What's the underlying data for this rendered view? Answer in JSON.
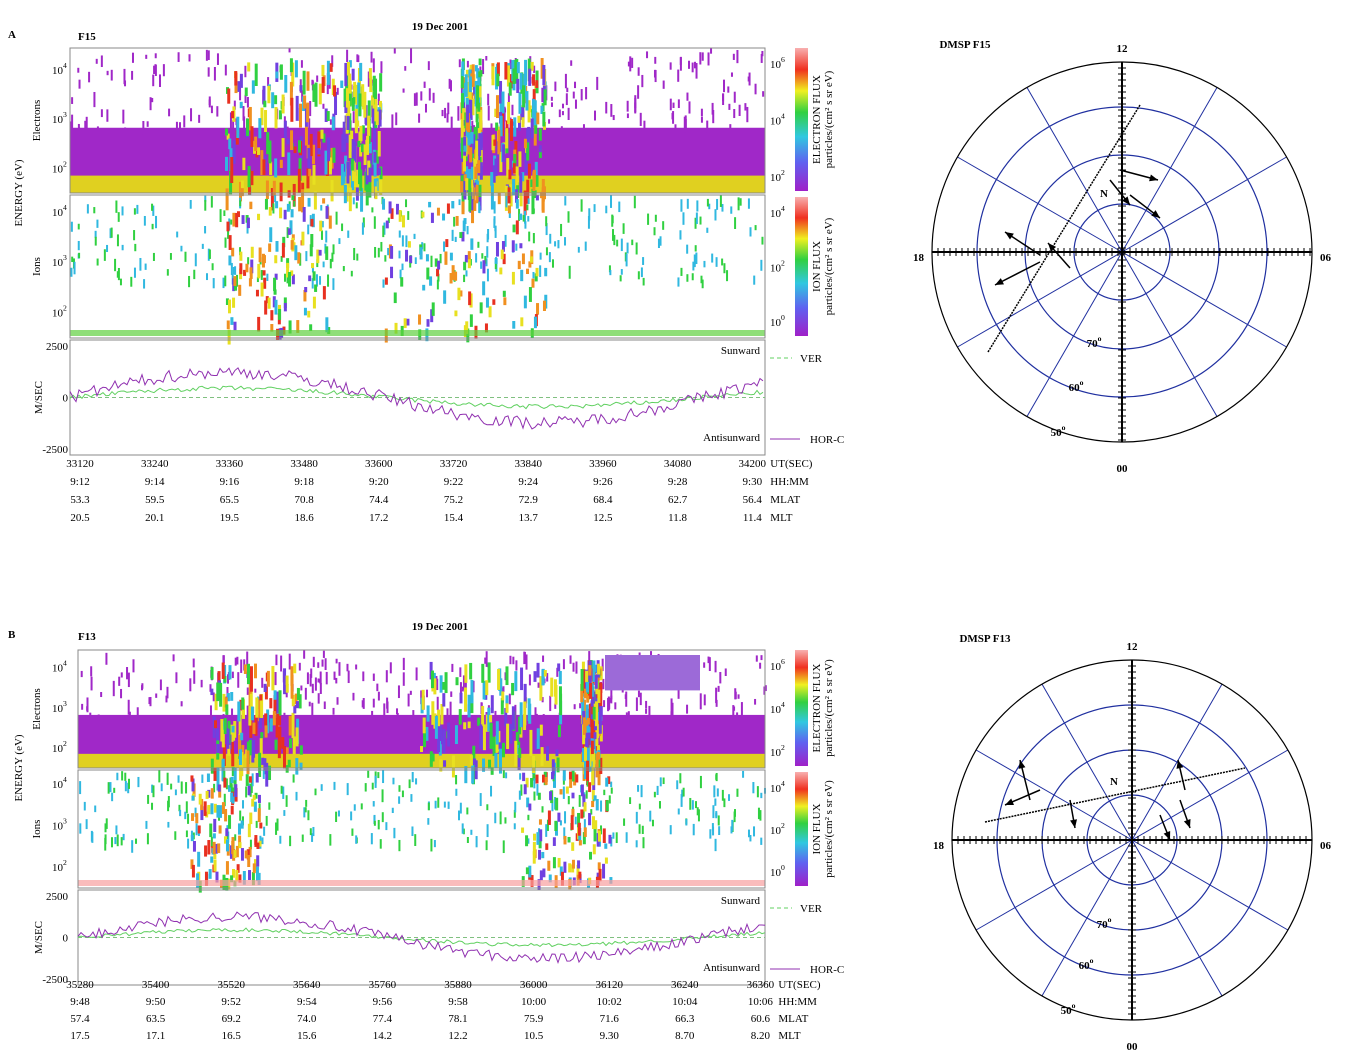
{
  "panels": [
    {
      "letter": "A",
      "satellite": "F15",
      "date": "19 Dec 2001",
      "spectrogram": {
        "energy_label": "ENERGY (eV)",
        "electrons_label": "Electrons",
        "ions_label": "Ions",
        "electron_ticks": [
          {
            "base": "10",
            "exp": "2"
          },
          {
            "base": "10",
            "exp": "3"
          },
          {
            "base": "10",
            "exp": "4"
          }
        ],
        "ion_ticks": [
          {
            "base": "10",
            "exp": "2"
          },
          {
            "base": "10",
            "exp": "3"
          },
          {
            "base": "10",
            "exp": "4"
          }
        ],
        "electron_colorbar": {
          "label": "ELECTRON FLUX",
          "units": "particles/(cm² s sr eV)",
          "ticks": [
            {
              "base": "10",
              "exp": "2"
            },
            {
              "base": "10",
              "exp": "4"
            },
            {
              "base": "10",
              "exp": "6"
            }
          ]
        },
        "ion_colorbar": {
          "label": "ION FLUX",
          "units": "particles/(cm² s sr eV)",
          "ticks": [
            {
              "base": "10",
              "exp": "0"
            },
            {
              "base": "10",
              "exp": "2"
            },
            {
              "base": "10",
              "exp": "4"
            }
          ]
        }
      },
      "velocity": {
        "label": "M/SEC",
        "ticks": [
          "2500",
          "0",
          "-2500"
        ],
        "sunward": "Sunward",
        "antisunward": "Antisunward",
        "legend": [
          "VER",
          "HOR-C"
        ]
      },
      "time_axis": [
        {
          "label": "UT(SEC)",
          "values": [
            "33120",
            "33240",
            "33360",
            "33480",
            "33600",
            "33720",
            "33840",
            "33960",
            "34080",
            "34200"
          ]
        },
        {
          "label": "HH:MM",
          "values": [
            "9:12",
            "9:14",
            "9:16",
            "9:18",
            "9:20",
            "9:22",
            "9:24",
            "9:26",
            "9:28",
            "9:30"
          ]
        },
        {
          "label": "MLAT",
          "values": [
            "53.3",
            "59.5",
            "65.5",
            "70.8",
            "74.4",
            "75.2",
            "72.9",
            "68.4",
            "62.7",
            "56.4"
          ]
        },
        {
          "label": "MLT",
          "values": [
            "20.5",
            "20.1",
            "19.5",
            "18.6",
            "17.2",
            "15.4",
            "13.7",
            "12.5",
            "11.8",
            "11.4"
          ]
        }
      ],
      "polar": {
        "title": "DMSP F15",
        "noon": "12",
        "dusk": "18",
        "dawn": "06",
        "midnight": "00",
        "north": "N",
        "latitudes": [
          {
            "base": "70",
            "exp": "o"
          },
          {
            "base": "60",
            "exp": "o"
          },
          {
            "base": "50",
            "exp": "o"
          }
        ]
      }
    },
    {
      "letter": "B",
      "satellite": "F13",
      "date": "19 Dec 2001",
      "spectrogram": {
        "energy_label": "ENERGY (eV)",
        "electrons_label": "Electrons",
        "ions_label": "Ions",
        "electron_ticks": [
          {
            "base": "10",
            "exp": "2"
          },
          {
            "base": "10",
            "exp": "3"
          },
          {
            "base": "10",
            "exp": "4"
          }
        ],
        "ion_ticks": [
          {
            "base": "10",
            "exp": "2"
          },
          {
            "base": "10",
            "exp": "3"
          },
          {
            "base": "10",
            "exp": "4"
          }
        ],
        "electron_colorbar": {
          "label": "ELECTRON FLUX",
          "units": "particles/(cm² s sr eV)",
          "ticks": [
            {
              "base": "10",
              "exp": "2"
            },
            {
              "base": "10",
              "exp": "4"
            },
            {
              "base": "10",
              "exp": "6"
            }
          ]
        },
        "ion_colorbar": {
          "label": "ION FLUX",
          "units": "particles/(cm² s sr eV)",
          "ticks": [
            {
              "base": "10",
              "exp": "0"
            },
            {
              "base": "10",
              "exp": "2"
            },
            {
              "base": "10",
              "exp": "4"
            }
          ]
        }
      },
      "velocity": {
        "label": "M/SEC",
        "ticks": [
          "2500",
          "0",
          "-2500"
        ],
        "sunward": "Sunward",
        "antisunward": "Antisunward",
        "legend": [
          "VER",
          "HOR-C"
        ]
      },
      "time_axis": [
        {
          "label": "UT(SEC)",
          "values": [
            "35280",
            "35400",
            "35520",
            "35640",
            "35760",
            "35880",
            "36000",
            "36120",
            "36240",
            "36360"
          ]
        },
        {
          "label": "HH:MM",
          "values": [
            "9:48",
            "9:50",
            "9:52",
            "9:54",
            "9:56",
            "9:58",
            "10:00",
            "10:02",
            "10:04",
            "10:06"
          ]
        },
        {
          "label": "MLAT",
          "values": [
            "57.4",
            "63.5",
            "69.2",
            "74.0",
            "77.4",
            "78.1",
            "75.9",
            "71.6",
            "66.3",
            "60.6"
          ]
        },
        {
          "label": "MLT",
          "values": [
            "17.5",
            "17.1",
            "16.5",
            "15.6",
            "14.2",
            "12.2",
            "10.5",
            "9.30",
            "8.70",
            "8.20"
          ]
        }
      ],
      "polar": {
        "title": "DMSP F13",
        "noon": "12",
        "dusk": "18",
        "dawn": "06",
        "midnight": "00",
        "north": "N",
        "latitudes": [
          {
            "base": "70",
            "exp": "o"
          },
          {
            "base": "60",
            "exp": "o"
          },
          {
            "base": "50",
            "exp": "o"
          }
        ]
      }
    }
  ]
}
